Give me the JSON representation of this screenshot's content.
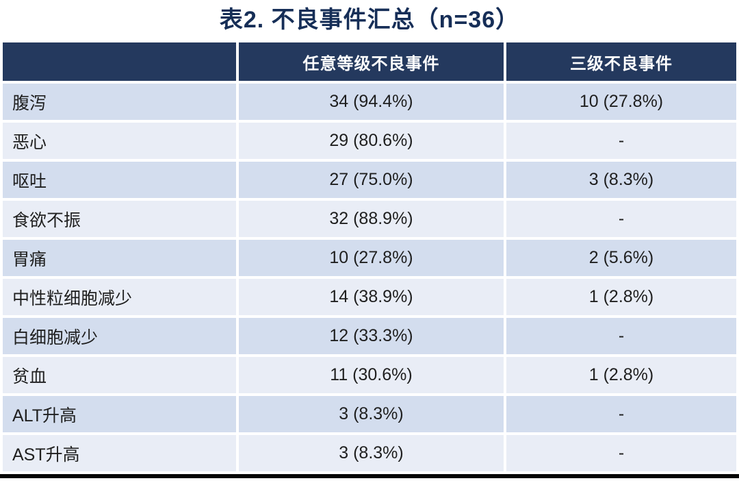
{
  "title": "表2. 不良事件汇总（n=36）",
  "colors": {
    "title_text": "#162E57",
    "header_bg": "#24395E",
    "header_text": "#FFFFFF",
    "row_dark": "#D3DDEE",
    "row_light": "#E9EDF6",
    "cell_text": "#1F1F1F",
    "bottom_border": "#050505",
    "page_bg": "#FFFFFF"
  },
  "table": {
    "columns": [
      "",
      "任意等级不良事件",
      "三级不良事件"
    ],
    "rows": [
      {
        "label": "腹泻",
        "any_grade": "34 (94.4%)",
        "grade3": "10 (27.8%)"
      },
      {
        "label": "恶心",
        "any_grade": "29 (80.6%)",
        "grade3": "-"
      },
      {
        "label": "呕吐",
        "any_grade": "27 (75.0%)",
        "grade3": "3 (8.3%)"
      },
      {
        "label": "食欲不振",
        "any_grade": "32 (88.9%)",
        "grade3": "-"
      },
      {
        "label": "胃痛",
        "any_grade": "10 (27.8%)",
        "grade3": "2 (5.6%)"
      },
      {
        "label": "中性粒细胞减少",
        "any_grade": "14 (38.9%)",
        "grade3": "1 (2.8%)"
      },
      {
        "label": "白细胞减少",
        "any_grade": "12 (33.3%)",
        "grade3": "-"
      },
      {
        "label": "贫血",
        "any_grade": "11 (30.6%)",
        "grade3": "1 (2.8%)"
      },
      {
        "label": "ALT升高",
        "any_grade": "3 (8.3%)",
        "grade3": "-"
      },
      {
        "label": "AST升高",
        "any_grade": "3 (8.3%)",
        "grade3": "-"
      }
    ]
  },
  "chart_data": {
    "type": "table",
    "title": "表2. 不良事件汇总（n=36）",
    "n": 36,
    "columns": [
      "",
      "任意等级不良事件",
      "三级不良事件"
    ],
    "rows": [
      [
        "腹泻",
        "34 (94.4%)",
        "10 (27.8%)"
      ],
      [
        "恶心",
        "29 (80.6%)",
        "-"
      ],
      [
        "呕吐",
        "27 (75.0%)",
        "3 (8.3%)"
      ],
      [
        "食欲不振",
        "32 (88.9%)",
        "-"
      ],
      [
        "胃痛",
        "10 (27.8%)",
        "2 (5.6%)"
      ],
      [
        "中性粒细胞减少",
        "14 (38.9%)",
        "1 (2.8%)"
      ],
      [
        "白细胞减少",
        "12 (33.3%)",
        "-"
      ],
      [
        "贫血",
        "11 (30.6%)",
        "1 (2.8%)"
      ],
      [
        "ALT升高",
        "3 (8.3%)",
        "-"
      ],
      [
        "AST升高",
        "3 (8.3%)",
        "-"
      ]
    ],
    "layout": {
      "banded_rows": true,
      "band_colors": [
        "#D3DDEE",
        "#E9EDF6"
      ],
      "header_style": "dark-navy, white bold text",
      "value_alignment": "center",
      "label_alignment": "left",
      "bottom_border": "thick black"
    }
  }
}
